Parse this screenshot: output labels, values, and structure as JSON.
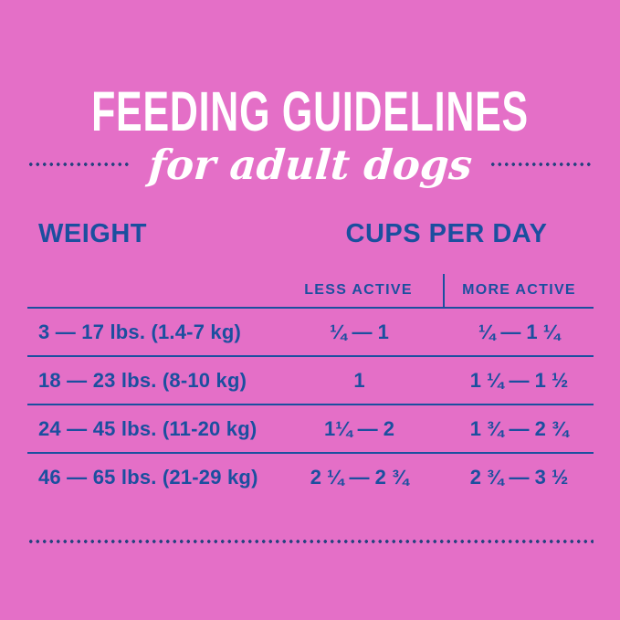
{
  "colors": {
    "background": "#e46fc7",
    "blue": "#1b4f9f",
    "dots": "#26417f",
    "white": "#ffffff"
  },
  "header": {
    "title": "FEEDING GUIDELINES",
    "subtitle": "for adult dogs"
  },
  "table": {
    "weight_header": "WEIGHT",
    "cups_header": "CUPS PER DAY",
    "col_less": "LESS ACTIVE",
    "col_more": "MORE ACTIVE",
    "rows": [
      {
        "weight": "3 — 17 lbs. (1.4-7 kg)",
        "less": "¼ — 1",
        "more": "¼ — 1 ¼"
      },
      {
        "weight": "18 — 23 lbs. (8-10 kg)",
        "less": "1",
        "more": "1 ¼ — 1 ½"
      },
      {
        "weight": "24 — 45 lbs. (11-20 kg)",
        "less": "1¼ — 2",
        "more": "1 ¾ — 2 ¾"
      },
      {
        "weight": "46 — 65 lbs. (21-29 kg)",
        "less": "2 ¼ — 2 ¾",
        "more": "2 ¾ — 3 ½"
      }
    ]
  },
  "chart_data": {
    "type": "table",
    "title": "FEEDING GUIDELINES for adult dogs",
    "columns": [
      "WEIGHT",
      "CUPS PER DAY — LESS ACTIVE",
      "CUPS PER DAY — MORE ACTIVE"
    ],
    "rows": [
      [
        "3 — 17 lbs. (1.4-7 kg)",
        "¼ — 1",
        "¼ — 1 ¼"
      ],
      [
        "18 — 23 lbs. (8-10 kg)",
        "1",
        "1 ¼ — 1 ½"
      ],
      [
        "24 — 45 lbs. (11-20 kg)",
        "1¼ — 2",
        "1 ¾ — 2 ¾"
      ],
      [
        "46 — 65 lbs. (21-29 kg)",
        "2 ¼ — 2 ¾",
        "2 ¾ — 3 ½"
      ]
    ]
  }
}
